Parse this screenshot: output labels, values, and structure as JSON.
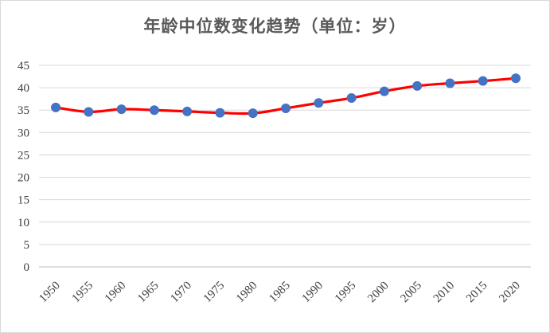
{
  "chart_data": {
    "type": "line",
    "title": "年龄中位数变化趋势（单位：岁）",
    "xlabel": "",
    "ylabel": "",
    "ylim": [
      0,
      45
    ],
    "yticks": [
      0,
      5,
      10,
      15,
      20,
      25,
      30,
      35,
      40,
      45
    ],
    "grid": true,
    "legend": "none",
    "line_color": "#ff0000",
    "marker_color": "#4472c4",
    "x": [
      "1950",
      "1955",
      "1960",
      "1965",
      "1970",
      "1975",
      "1980",
      "1985",
      "1990",
      "1995",
      "2000",
      "2005",
      "2010",
      "2015",
      "2020"
    ],
    "series": [
      {
        "values": [
          35.6,
          34.6,
          35.2,
          35.0,
          34.7,
          34.4,
          34.3,
          35.4,
          36.6,
          37.7,
          39.2,
          40.4,
          41.0,
          41.5,
          42.1
        ]
      }
    ]
  }
}
